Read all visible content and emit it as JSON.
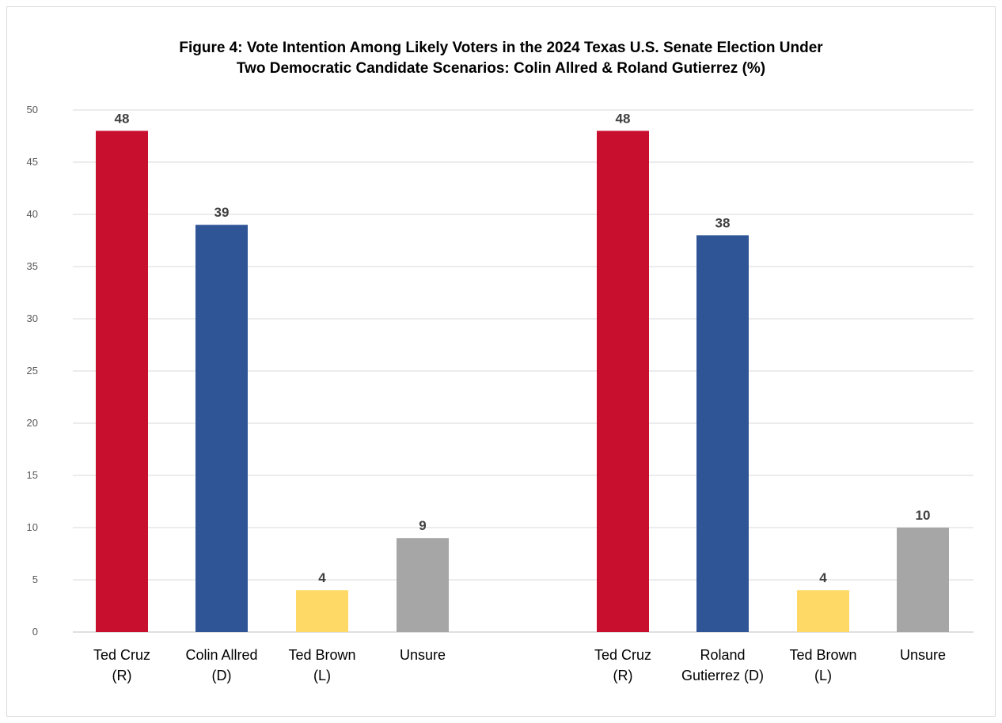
{
  "chart_data": {
    "type": "bar",
    "title": "Figure 4: Vote Intention Among Likely Voters in the 2024 Texas U.S. Senate Election Under Two Democratic Candidate Scenarios: Colin Allred & Roland Gutierrez (%)",
    "title_lines": [
      "Figure 4: Vote Intention Among Likely Voters in the 2024 Texas U.S. Senate Election Under",
      "Two Democratic Candidate Scenarios: Colin Allred & Roland Gutierrez (%)"
    ],
    "xlabel": "",
    "ylabel": "",
    "ylim": [
      0,
      50
    ],
    "yticks": [
      0,
      5,
      10,
      15,
      20,
      25,
      30,
      35,
      40,
      45,
      50
    ],
    "grid": true,
    "legend": "none",
    "groups": [
      {
        "bars": [
          {
            "category": [
              "Ted Cruz",
              "(R)"
            ],
            "value": 48,
            "color": "#C8102E"
          },
          {
            "category": [
              "Colin Allred",
              "(D)"
            ],
            "value": 39,
            "color": "#2F5597"
          },
          {
            "category": [
              "Ted Brown",
              "(L)"
            ],
            "value": 4,
            "color": "#FFD966"
          },
          {
            "category": [
              "Unsure"
            ],
            "value": 9,
            "color": "#A6A6A6"
          }
        ]
      },
      {
        "bars": [
          {
            "category": [
              "Ted Cruz",
              "(R)"
            ],
            "value": 48,
            "color": "#C8102E"
          },
          {
            "category": [
              "Roland",
              "Gutierrez (D)"
            ],
            "value": 38,
            "color": "#2F5597"
          },
          {
            "category": [
              "Ted Brown",
              "(L)"
            ],
            "value": 4,
            "color": "#FFD966"
          },
          {
            "category": [
              "Unsure"
            ],
            "value": 10,
            "color": "#A6A6A6"
          }
        ]
      }
    ]
  }
}
